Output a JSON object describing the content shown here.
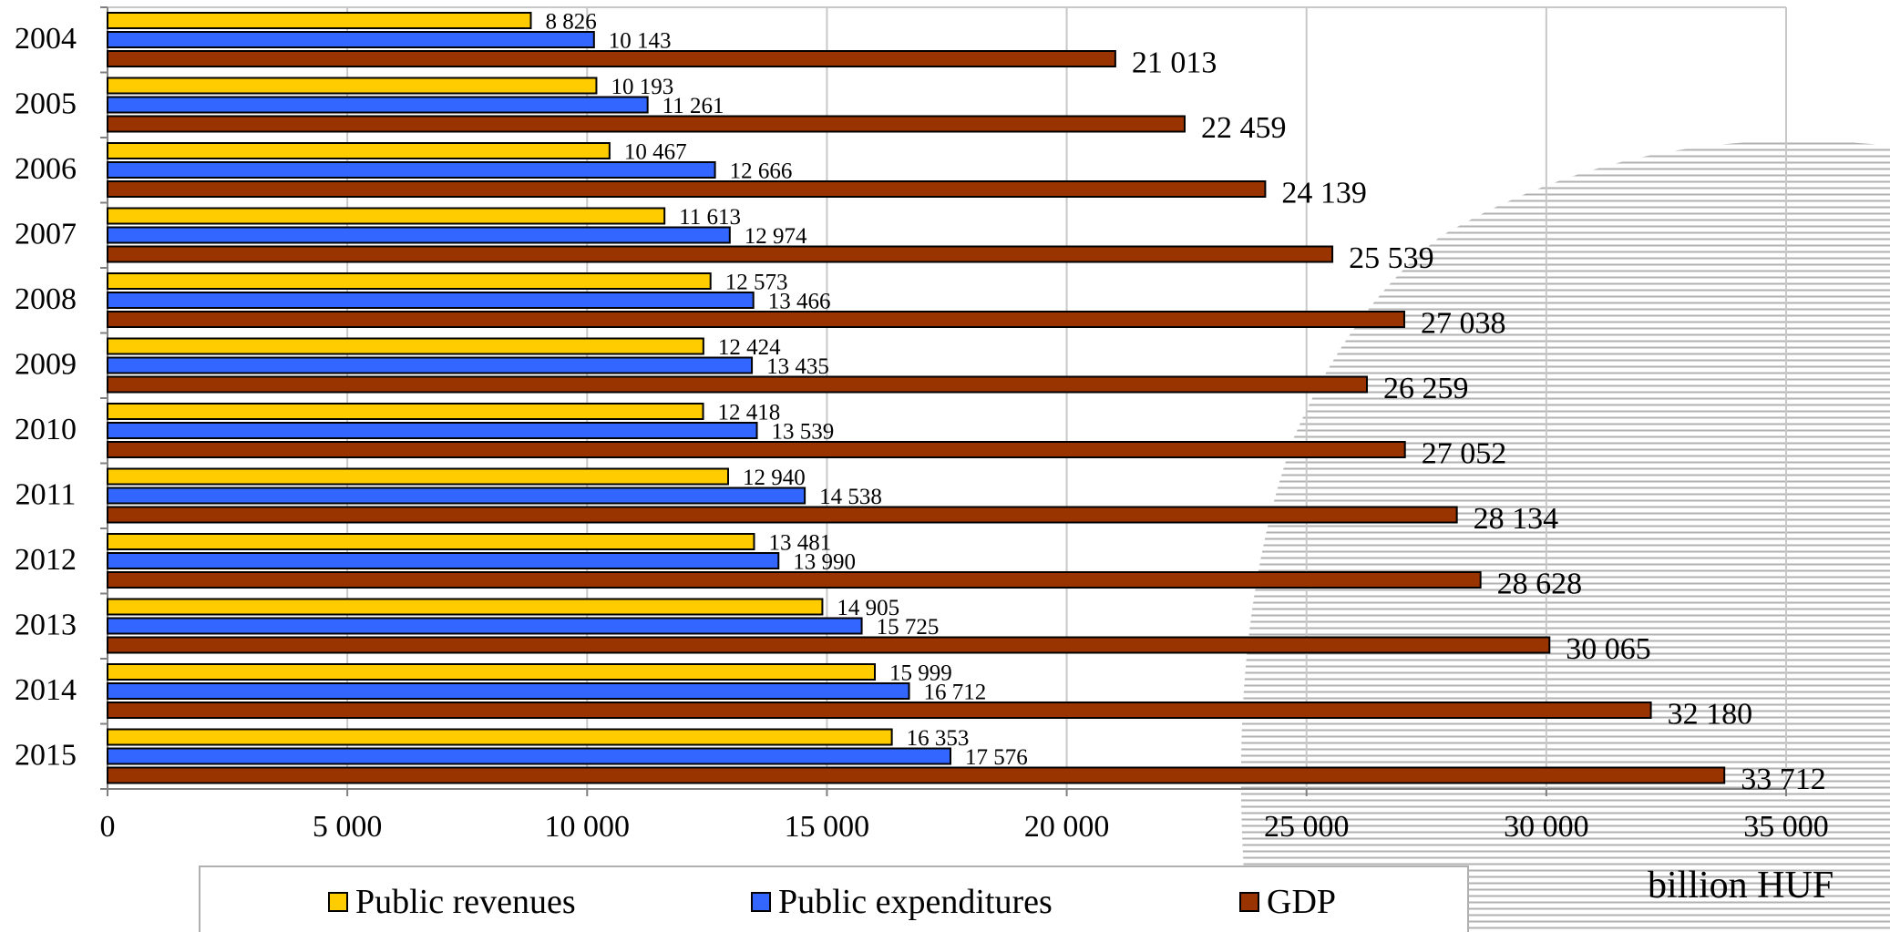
{
  "chart_data": {
    "type": "bar",
    "orientation": "horizontal",
    "categories": [
      "2004",
      "2005",
      "2006",
      "2007",
      "2008",
      "2009",
      "2010",
      "2011",
      "2012",
      "2013",
      "2014",
      "2015"
    ],
    "series": [
      {
        "name": "Public revenues",
        "color": "#FFCC00",
        "values": [
          8826,
          10193,
          10467,
          11613,
          12573,
          12424,
          12418,
          12940,
          13481,
          14905,
          15999,
          16353
        ],
        "labels": [
          "8 826",
          "10 193",
          "10 467",
          "11 613",
          "12 573",
          "12 424",
          "12 418",
          "12 940",
          "13 481",
          "14 905",
          "15 999",
          "16 353"
        ]
      },
      {
        "name": "Public expenditures",
        "color": "#3366FF",
        "values": [
          10143,
          11261,
          12666,
          12974,
          13466,
          13435,
          13539,
          14538,
          13990,
          15725,
          16712,
          17576
        ],
        "labels": [
          "10 143",
          "11 261",
          "12 666",
          "12 974",
          "13 466",
          "13 435",
          "13 539",
          "14 538",
          "13 990",
          "15 725",
          "16 712",
          "17 576"
        ]
      },
      {
        "name": "GDP",
        "color": "#993300",
        "values": [
          21013,
          22459,
          24139,
          25539,
          27038,
          26259,
          27052,
          28134,
          28628,
          30065,
          32180,
          33712
        ],
        "labels": [
          "21 013",
          "22 459",
          "24 139",
          "25 539",
          "27 038",
          "26 259",
          "27 052",
          "28 134",
          "28 628",
          "30 065",
          "32 180",
          "33 712"
        ]
      }
    ],
    "xlim": [
      0,
      35000
    ],
    "xticks": [
      0,
      5000,
      10000,
      15000,
      20000,
      25000,
      30000,
      35000
    ],
    "xtick_labels": [
      "0",
      "5 000",
      "10 000",
      "15 000",
      "20 000",
      "25 000",
      "30 000",
      "35 000"
    ],
    "unit_label": "billion HUF",
    "legend_position": "bottom",
    "grid": "vertical"
  }
}
